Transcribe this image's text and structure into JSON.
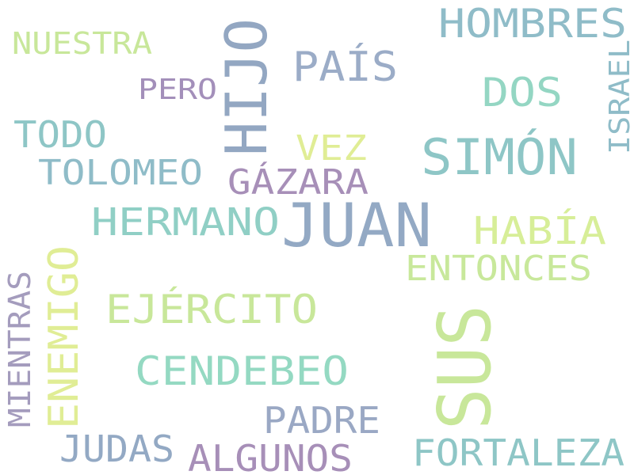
{
  "words": [
    {
      "id": "juan",
      "text": "JUAN",
      "color": "#93a9c4",
      "vertical": false
    },
    {
      "id": "sus",
      "text": "SUS",
      "color": "#c8e79a",
      "vertical": true
    },
    {
      "id": "hijo",
      "text": "HIJO",
      "color": "#93a7c2",
      "vertical": true
    },
    {
      "id": "simon",
      "text": "SIMÓN",
      "color": "#8ec6c6",
      "vertical": false
    },
    {
      "id": "hombres",
      "text": "HOMBRES",
      "color": "#8fbcc8",
      "vertical": false
    },
    {
      "id": "enemigo",
      "text": "ENEMIGO",
      "color": "#e0ed95",
      "vertical": true
    },
    {
      "id": "ejercito",
      "text": "EJÉRCITO",
      "color": "#c8e79a",
      "vertical": false
    },
    {
      "id": "cendebeo",
      "text": "CENDEBEO",
      "color": "#94d9c2",
      "vertical": false
    },
    {
      "id": "hermano",
      "text": "HERMANO",
      "color": "#90cfc5",
      "vertical": false
    },
    {
      "id": "habia",
      "text": "HABÍA",
      "color": "#d7ee98",
      "vertical": false
    },
    {
      "id": "entonces",
      "text": "ENTONCES",
      "color": "#c8e89b",
      "vertical": false
    },
    {
      "id": "pais",
      "text": "PAÍS",
      "color": "#9bacc7",
      "vertical": false
    },
    {
      "id": "dos",
      "text": "DOS",
      "color": "#94d6c3",
      "vertical": false
    },
    {
      "id": "gazara",
      "text": "GÁZARA",
      "color": "#a78fb8",
      "vertical": false
    },
    {
      "id": "tolomeo",
      "text": "TOLOMEO",
      "color": "#8fbcc8",
      "vertical": false
    },
    {
      "id": "todo",
      "text": "TODO",
      "color": "#8ec6c6",
      "vertical": false
    },
    {
      "id": "vez",
      "text": "VEZ",
      "color": "#e0ed95",
      "vertical": false
    },
    {
      "id": "pero",
      "text": "PERO",
      "color": "#a38fba",
      "vertical": false
    },
    {
      "id": "nuestra",
      "text": "NUESTRA",
      "color": "#c8e79a",
      "vertical": false
    },
    {
      "id": "israel",
      "text": "ISRAEL",
      "color": "#8fbcc8",
      "vertical": true
    },
    {
      "id": "mientras",
      "text": "MIENTRAS",
      "color": "#a49cbd",
      "vertical": true
    },
    {
      "id": "padre",
      "text": "PADRE",
      "color": "#9aa8c4",
      "vertical": false
    },
    {
      "id": "judas",
      "text": "JUDAS",
      "color": "#93a9c4",
      "vertical": false
    },
    {
      "id": "algunos",
      "text": "ALGUNOS",
      "color": "#a78fb8",
      "vertical": false
    },
    {
      "id": "fortaleza",
      "text": "FORTALEZA",
      "color": "#8ec6c6",
      "vertical": false
    }
  ]
}
